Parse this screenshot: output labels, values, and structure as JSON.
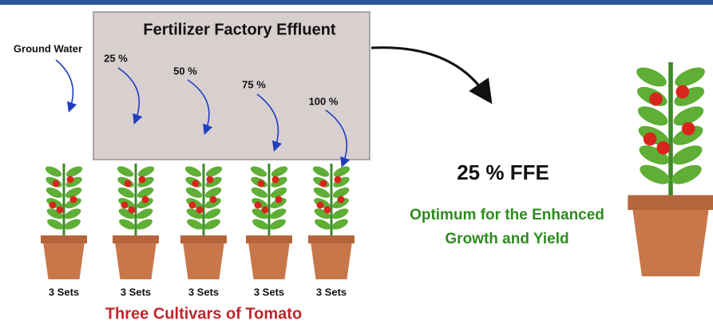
{
  "header": {
    "title": "Fertilizer Factory Effluent"
  },
  "source": "Ground Water",
  "treatments": [
    "25 %",
    "50 %",
    "75 %",
    "100 %"
  ],
  "pots": [
    "3 Sets",
    "3 Sets",
    "3 Sets",
    "3 Sets",
    "3 Sets"
  ],
  "footer": "Three Cultivars of Tomato",
  "result": {
    "title": "25 % FFE",
    "lines": [
      "Optimum for the Enhanced",
      "Growth and Yield"
    ]
  }
}
